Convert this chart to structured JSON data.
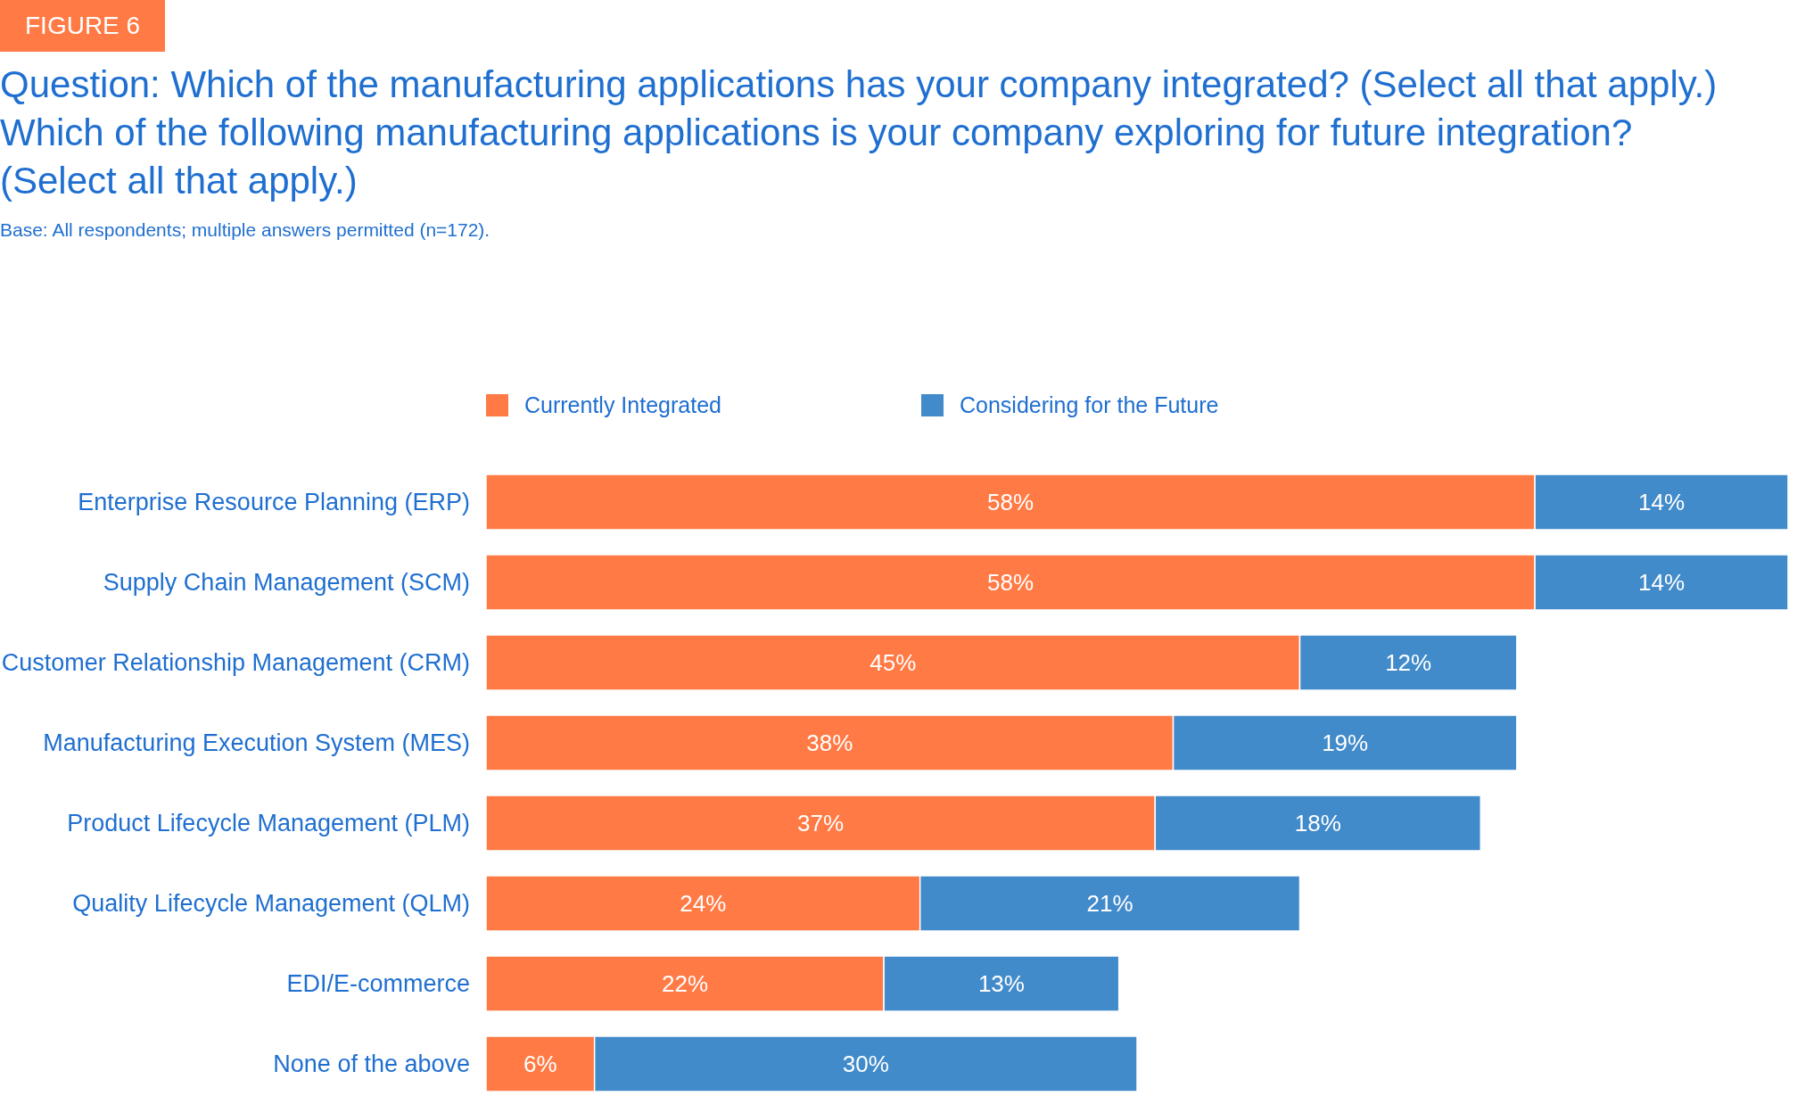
{
  "chart_data": {
    "type": "bar",
    "orientation": "horizontal",
    "stacked": true,
    "legend": "top",
    "title": "Question: Which of the manufacturing applications has your company integrated? (Select all that apply.) Which of the following manufacturing applications is your company exploring for future integration? (Select all that apply.)",
    "subtitle": "Base: All respondents; multiple answers permitted (n=172).",
    "annotations": [
      "FIGURE 6"
    ],
    "categories": [
      "Enterprise Resource Planning (ERP)",
      "Supply Chain Management (SCM)",
      "Customer Relationship Management (CRM)",
      "Manufacturing Execution System (MES)",
      "Product Lifecycle Management (PLM)",
      "Quality Lifecycle Management (QLM)",
      "EDI/E-commerce",
      "None of the above"
    ],
    "series": [
      {
        "name": "Currently Integrated",
        "color": "#ff7a45",
        "values": [
          58,
          58,
          45,
          38,
          37,
          24,
          22,
          6
        ],
        "value_labels": [
          "58%",
          "58%",
          "45%",
          "38%",
          "37%",
          "24%",
          "22%",
          "6%"
        ]
      },
      {
        "name": "Considering for the Future",
        "color": "#428bca",
        "values": [
          14,
          14,
          12,
          19,
          18,
          21,
          13,
          30
        ],
        "value_labels": [
          "14%",
          "14%",
          "12%",
          "19%",
          "18%",
          "21%",
          "13%",
          "30%"
        ]
      }
    ]
  }
}
